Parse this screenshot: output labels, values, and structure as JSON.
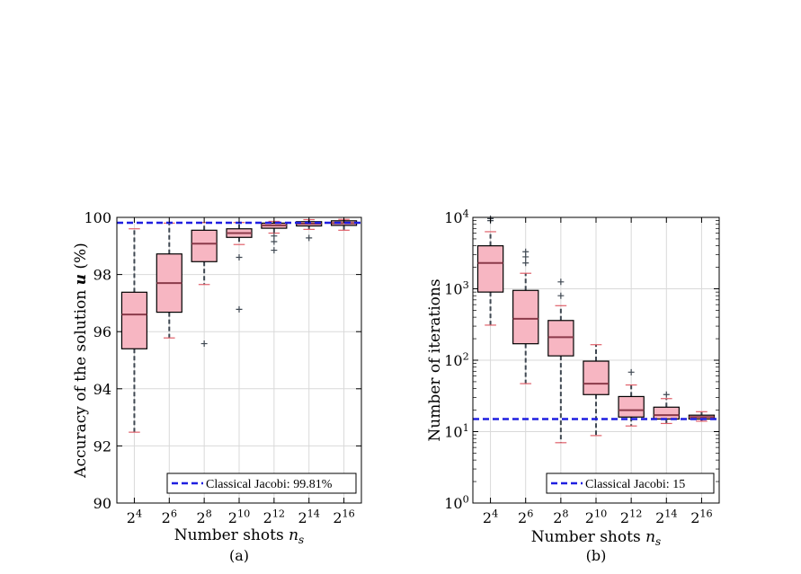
{
  "chart_data": [
    {
      "type": "box",
      "subfigure_label": "(a)",
      "xlabel": "Number shots n_s",
      "ylabel": "Accuracy of the solution u (%)",
      "ylim": [
        90,
        100
      ],
      "yticks": [
        90,
        92,
        94,
        96,
        98,
        100
      ],
      "categories": [
        "2^4",
        "2^6",
        "2^8",
        "2^10",
        "2^12",
        "2^14",
        "2^16"
      ],
      "y_scale": "linear",
      "grid": true,
      "legend": {
        "text": "Classical Jacobi: 99.81%",
        "position": "bottom-right"
      },
      "reference_line": {
        "label": "Classical Jacobi",
        "value": 99.81
      },
      "boxes": [
        {
          "category": "2^4",
          "whisker_low": 92.48,
          "q1": 95.4,
          "median": 96.6,
          "q3": 97.38,
          "whisker_high": 99.6,
          "outliers": []
        },
        {
          "category": "2^6",
          "whisker_low": 95.78,
          "q1": 96.68,
          "median": 97.7,
          "q3": 98.72,
          "whisker_high": 99.8,
          "outliers": []
        },
        {
          "category": "2^8",
          "whisker_low": 97.65,
          "q1": 98.45,
          "median": 99.08,
          "q3": 99.55,
          "whisker_high": 99.82,
          "outliers": [
            95.58
          ]
        },
        {
          "category": "2^10",
          "whisker_low": 99.05,
          "q1": 99.3,
          "median": 99.45,
          "q3": 99.6,
          "whisker_high": 99.82,
          "outliers": [
            98.6,
            96.78
          ]
        },
        {
          "category": "2^12",
          "whisker_low": 99.45,
          "q1": 99.62,
          "median": 99.72,
          "q3": 99.8,
          "whisker_high": 99.86,
          "outliers": [
            99.35,
            99.15,
            98.85
          ]
        },
        {
          "category": "2^14",
          "whisker_low": 99.58,
          "q1": 99.7,
          "median": 99.78,
          "q3": 99.85,
          "whisker_high": 99.92,
          "outliers": [
            99.28
          ]
        },
        {
          "category": "2^16",
          "whisker_low": 99.55,
          "q1": 99.72,
          "median": 99.8,
          "q3": 99.88,
          "whisker_high": 99.93,
          "outliers": []
        }
      ]
    },
    {
      "type": "box",
      "subfigure_label": "(b)",
      "xlabel": "Number shots n_s",
      "ylabel": "Number of iterations",
      "ylim": [
        1,
        10000
      ],
      "yticks": [
        1,
        10,
        100,
        1000,
        10000
      ],
      "ytick_labels": [
        "10^0",
        "10^1",
        "10^2",
        "10^3",
        "10^4"
      ],
      "categories": [
        "2^4",
        "2^6",
        "2^8",
        "2^10",
        "2^12",
        "2^14",
        "2^16"
      ],
      "y_scale": "log",
      "grid": true,
      "legend": {
        "text": "Classical Jacobi: 15",
        "position": "bottom-right"
      },
      "reference_line": {
        "label": "Classical Jacobi",
        "value": 15
      },
      "boxes": [
        {
          "category": "2^4",
          "whisker_low": 310,
          "q1": 900,
          "median": 2300,
          "q3": 4000,
          "whisker_high": 6300,
          "outliers": [
            9000,
            9600
          ]
        },
        {
          "category": "2^6",
          "whisker_low": 47,
          "q1": 170,
          "median": 380,
          "q3": 950,
          "whisker_high": 1650,
          "outliers": [
            2300,
            2800,
            3300
          ]
        },
        {
          "category": "2^8",
          "whisker_low": 7,
          "q1": 115,
          "median": 210,
          "q3": 360,
          "whisker_high": 580,
          "outliers": [
            800,
            1250
          ]
        },
        {
          "category": "2^10",
          "whisker_low": 8.8,
          "q1": 33,
          "median": 47,
          "q3": 97,
          "whisker_high": 165,
          "outliers": []
        },
        {
          "category": "2^12",
          "whisker_low": 12,
          "q1": 16,
          "median": 20,
          "q3": 31,
          "whisker_high": 45,
          "outliers": [
            68
          ]
        },
        {
          "category": "2^14",
          "whisker_low": 13,
          "q1": 15,
          "median": 17,
          "q3": 22,
          "whisker_high": 29,
          "outliers": [
            33
          ]
        },
        {
          "category": "2^16",
          "whisker_low": 14,
          "q1": 15,
          "median": 16,
          "q3": 17,
          "whisker_high": 19,
          "outliers": []
        }
      ]
    }
  ],
  "colors": {
    "box_fill": "#f7b6c2",
    "box_edge": "#000000",
    "median": "#8b3a4a",
    "whisker": "#3f4852",
    "whisker_cap": "#e0606a",
    "outlier": "#3f4852",
    "reference_line": "#1f1fe0",
    "grid": "#d9d9d9"
  }
}
